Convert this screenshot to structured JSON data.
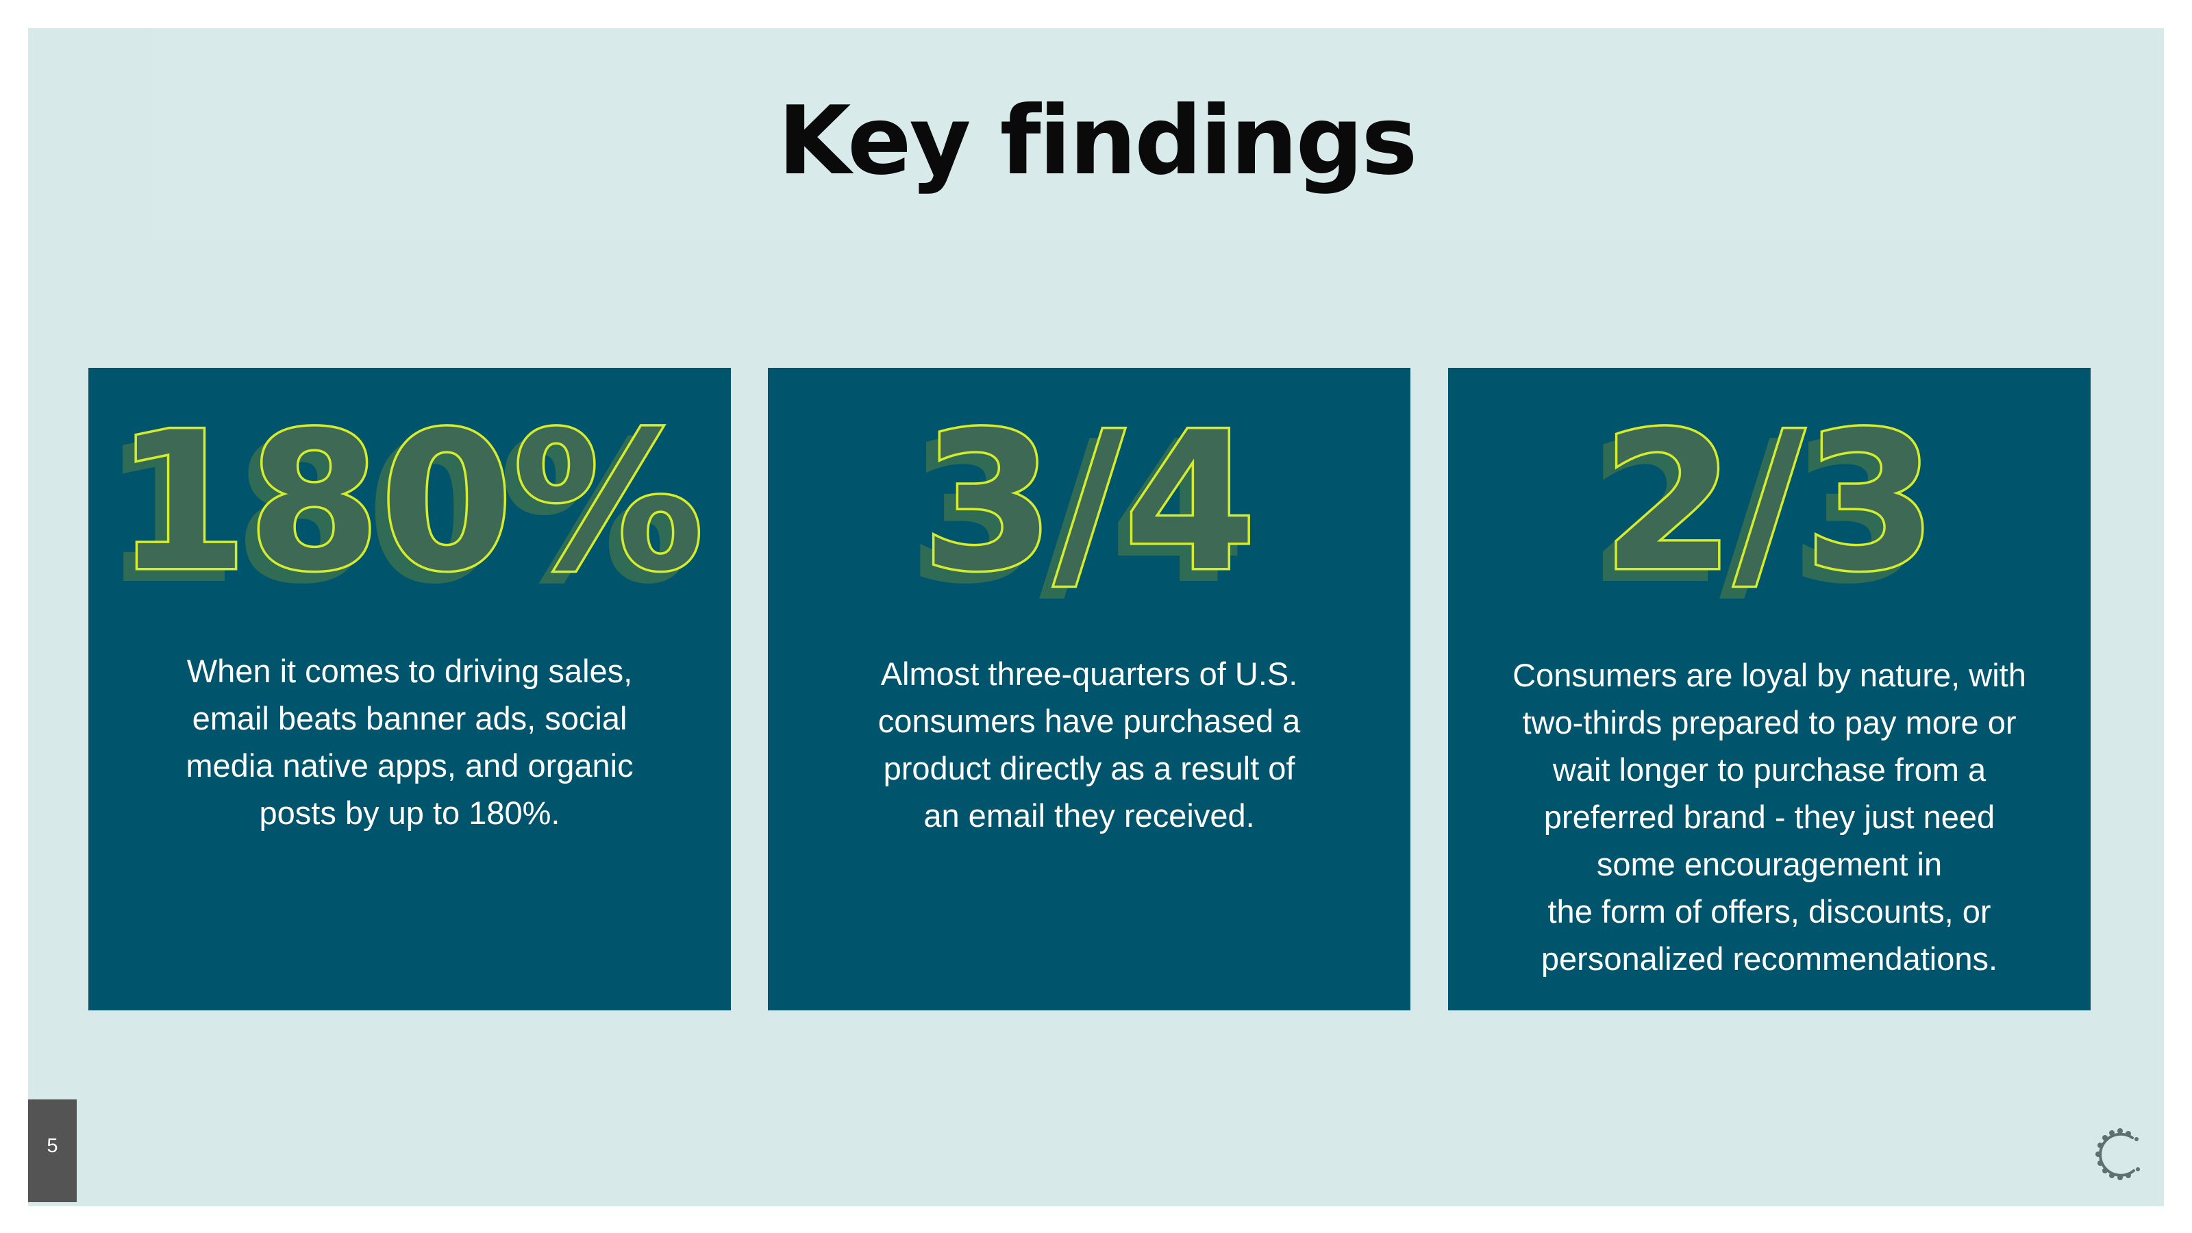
{
  "title": "Key findings",
  "page_number": "5",
  "colors": {
    "background": "#d7e9e9",
    "card": "#00546b",
    "stat_outline": "#d4ec2c",
    "stat_shadow": "#2f6b55",
    "text": "#ffffff"
  },
  "cards": [
    {
      "stat": "180%",
      "lines": [
        "When it comes to driving sales,",
        "email beats banner ads, social",
        "media native apps, and organic",
        "posts by up to 180%."
      ]
    },
    {
      "stat": "3/4",
      "lines": [
        "Almost three-quarters of U.S.",
        "consumers have purchased a",
        "product directly as a result of",
        "an email they received."
      ]
    },
    {
      "stat": "2/3",
      "lines": [
        "Consumers are loyal by nature, with",
        "two-thirds prepared to pay more or",
        "wait longer to purchase from a",
        "preferred brand - they just need",
        "some encouragement in",
        "the form of offers, discounts, or",
        "personalized recommendations."
      ]
    }
  ],
  "logo_icon": "leafy-c-logo-icon"
}
